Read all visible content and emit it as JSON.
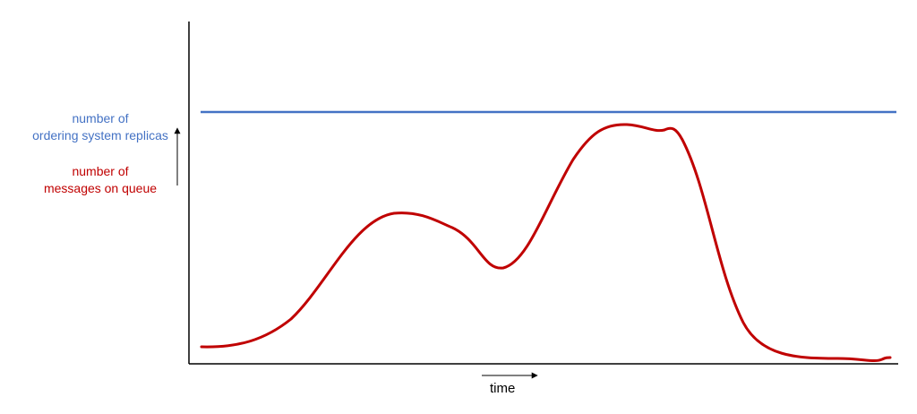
{
  "legend": {
    "replicas": {
      "line1": "number of",
      "line2": "ordering system replicas",
      "color": "#4472c4"
    },
    "messages": {
      "line1": "number of",
      "line2": "messages on queue",
      "color": "#c00000"
    }
  },
  "x_axis": {
    "label": "time"
  },
  "axis_color": "#000000"
}
